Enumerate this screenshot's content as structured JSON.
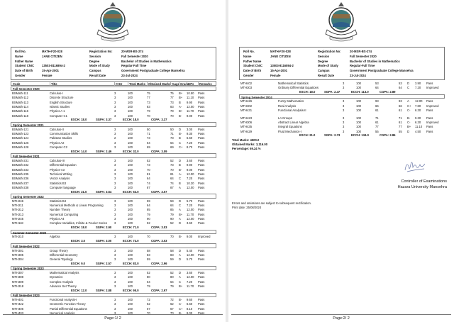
{
  "logo_text": "HAZARA UNIVERSITY",
  "student": {
    "left": [
      [
        "Roll No.",
        "MATH-F20-028"
      ],
      [
        "Name",
        "JANE CITIZEN"
      ],
      [
        "Father Name",
        ""
      ],
      [
        "Student CNIC",
        "13503-8116894-2"
      ],
      [
        "Date of Birth",
        "15-Apr-2001"
      ],
      [
        "Gender",
        "Female"
      ]
    ],
    "right": [
      [
        "Registration No:",
        "20-MSR-BS-274"
      ],
      [
        "Session",
        "Fall Semester 2020"
      ],
      [
        "Degree",
        "Bachelor of Studies in Mathematics"
      ],
      [
        "Mode of Study",
        "Regular-Full Time"
      ],
      [
        "Campus",
        "Government Postgraduate College Mansehra"
      ],
      [
        "Result Date",
        "23-Jul-2024"
      ]
    ]
  },
  "columns": [
    "Code",
    "Title",
    "CrHr",
    "Total Marks",
    "Obtained Marks",
    "%age",
    "Grade",
    "GPs",
    "Remarks"
  ],
  "page1": {
    "sections": [
      {
        "title": "Fall Semester 2020",
        "rows": [
          [
            "BSMath-111",
            "Calculus-I",
            "3",
            "100",
            "75",
            "75",
            "B+",
            "10.50",
            "Pass"
          ],
          [
            "BSMath-112",
            "Discrete Structure",
            "3",
            "100",
            "77",
            "77",
            "B+",
            "11.10",
            "Pass"
          ],
          [
            "BSMath-113",
            "English Structure",
            "3",
            "100",
            "73",
            "73",
            "B",
            "9.90",
            "Pass"
          ],
          [
            "BSMath-114",
            "Islamic Studies",
            "3",
            "100",
            "83",
            "83",
            "A-",
            "12.00",
            "Pass"
          ],
          [
            "BSMath-116",
            "Physics A 1",
            "3",
            "100",
            "79",
            "79",
            "B+",
            "11.70",
            "Pass"
          ],
          [
            "BSMath-118",
            "Computer C1",
            "3",
            "100",
            "70",
            "70",
            "B-",
            "9.00",
            "Pass"
          ]
        ],
        "summary": {
          "esch": "ESCH: 18.0",
          "sgpa": "SGPA: 3.37",
          "ecch": "ECCH: 18.0",
          "cgpa": "CGPA: 3.37"
        }
      },
      {
        "title": "Spring Semester 2021",
        "rows": [
          [
            "BSMath-121",
            "Calculus-II",
            "3",
            "100",
            "50",
            "50",
            "D",
            "3.00",
            "Pass"
          ],
          [
            "BSMath-123",
            "Communication Skills",
            "3",
            "100",
            "71",
            "71",
            "B-",
            "9.30",
            "Pass"
          ],
          [
            "BSMath-124",
            "Pakistan Studies",
            "2",
            "100",
            "73",
            "73",
            "B",
            "6.60",
            "Pass"
          ],
          [
            "BSMath-126",
            "Physics A2",
            "3",
            "100",
            "64",
            "64",
            "C",
            "7.20",
            "Pass"
          ],
          [
            "BSMath-128",
            "Computer C2",
            "3",
            "100",
            "69",
            "69",
            "C+",
            "8.70",
            "Pass"
          ]
        ],
        "summary": {
          "esch": "ESCH: 14.0",
          "sgpa": "SGPA: 2.49",
          "ecch": "ECCH: 32.0",
          "cgpa": "CGPA: 3.09"
        }
      },
      {
        "title": "Fall Semester 2021",
        "rows": [
          [
            "BSMath-231",
            "Calculus-III",
            "3",
            "100",
            "52",
            "52",
            "D",
            "3.60",
            "Pass"
          ],
          [
            "BSMath-232",
            "Differential Equation",
            "3",
            "100",
            "73",
            "73",
            "B",
            "9.90",
            "Pass"
          ],
          [
            "BSMath-233",
            "Physics-A3",
            "3",
            "100",
            "70",
            "70",
            "B-",
            "9.00",
            "Pass"
          ],
          [
            "BSMath-235",
            "Technical Writing",
            "3",
            "100",
            "81",
            "81",
            "A-",
            "12.00",
            "Pass"
          ],
          [
            "BSMath-236",
            "Vector Analysis",
            "3",
            "100",
            "64",
            "64",
            "C",
            "7.20",
            "Pass"
          ],
          [
            "BSMath-237",
            "Statistics B3",
            "3",
            "100",
            "74",
            "74",
            "B",
            "10.20",
            "Pass"
          ],
          [
            "BSMath-238",
            "Computer language",
            "3",
            "100",
            "87",
            "87",
            "A",
            "12.00",
            "Pass"
          ]
        ],
        "summary": {
          "esch": "ESCH: 21.0",
          "sgpa": "SGPA: 3.64",
          "ecch": "ECCH: 53.0",
          "cgpa": "CGPA: 3.07"
        }
      },
      {
        "title": "Spring Semester 2022",
        "rows": [
          [
            "MTH246",
            "Statistics B4",
            "3",
            "100",
            "59",
            "59",
            "D",
            "5.70",
            "Pass"
          ],
          [
            "MTH211",
            "Numerical Methods & Linear Programing",
            "3",
            "100",
            "64",
            "64",
            "C",
            "7.20",
            "Pass"
          ],
          [
            "MTH212",
            "Number Theory",
            "3",
            "100",
            "85",
            "85",
            "A",
            "12.00",
            "Pass"
          ],
          [
            "MTH213",
            "Numerical Computing",
            "3",
            "100",
            "79",
            "79",
            "B+",
            "11.70",
            "Pass"
          ],
          [
            "MTH245",
            "Physics A4",
            "3",
            "100",
            "90",
            "90",
            "A",
            "12.00",
            "Pass"
          ],
          [
            "MTH118",
            "Complex Variables, Infinite & Fourier Series",
            "3",
            "100",
            "52",
            "52",
            "D",
            "3.60",
            "Pass"
          ]
        ],
        "summary": {
          "esch": "ESCH: 18.0",
          "sgpa": "SGPA: 2.90",
          "ecch": "ECCH: 71.0",
          "cgpa": "CGPA: 3.03"
        }
      },
      {
        "title": "Summer Semester 2022",
        "rows": [
          [
            "MTH210",
            "Algebra",
            "3",
            "100",
            "70",
            "70",
            "B-",
            "9.00",
            "Improved"
          ]
        ],
        "summary": {
          "esch": "ESCH: 3.0",
          "sgpa": "SGPA: 3.00",
          "ecch": "ECCH: 74.0",
          "cgpa": "CGPA: 3.03"
        }
      },
      {
        "title": "Fall Semester 2022",
        "rows": [
          [
            "MTH301",
            "Group Theory",
            "3",
            "100",
            "58",
            "58",
            "D",
            "5.40",
            "Pass"
          ],
          [
            "MTH305",
            "Differential Geometry",
            "3",
            "100",
            "83",
            "83",
            "A",
            "12.00",
            "Pass"
          ],
          [
            "MTH304",
            "General Topology",
            "3",
            "100",
            "59",
            "59",
            "D",
            "5.70",
            "Pass"
          ]
        ],
        "summary": {
          "esch": "ESCH: 9.0",
          "sgpa": "SGPA: 2.57",
          "ecch": "ECCH: 83.0",
          "cgpa": "CGPA: 2.96"
        }
      },
      {
        "title": "Spring Semester 2023",
        "rows": [
          [
            "MTH307",
            "Mathematical Analysis",
            "3",
            "100",
            "52",
            "52",
            "D",
            "3.60",
            "Pass"
          ],
          [
            "MTH308",
            "Dynamics",
            "3",
            "100",
            "80",
            "80",
            "A",
            "12.00",
            "Pass"
          ],
          [
            "MTH309",
            "Complex Analysis",
            "3",
            "100",
            "64",
            "64",
            "C",
            "7.20",
            "Pass"
          ],
          [
            "MTH318",
            "Advance Set Theory",
            "3",
            "100",
            "79",
            "79",
            "B+",
            "11.70",
            "Pass"
          ]
        ],
        "summary": {
          "esch": "ESCH: 12.0",
          "sgpa": "SGPA: 2.88",
          "ecch": "ECCH: 95.0",
          "cgpa": "CGPA: 2.97"
        }
      },
      {
        "title": "Fall Semester 2023",
        "rows": [
          [
            "MTH401",
            "Functional Analysis-I",
            "3",
            "100",
            "72",
            "72",
            "B-",
            "9.60",
            "Pass"
          ],
          [
            "MTH422",
            "Geometric Function Theory",
            "3",
            "100",
            "62",
            "62",
            "C-",
            "6.60",
            "Pass"
          ],
          [
            "MTH406",
            "Partial Differential Equations",
            "3",
            "100",
            "67",
            "67",
            "C+",
            "8.10",
            "Pass"
          ],
          [
            "MTH403",
            "Numerical Analysis",
            "3",
            "100",
            "70",
            "70",
            "B-",
            "9.00",
            "Pass"
          ]
        ],
        "summary": null
      }
    ],
    "page_label": "Page:1/ 2"
  },
  "page2": {
    "sections": [
      {
        "title": "",
        "rows": [
          [
            "MTH402",
            "Mathematical Statistics",
            "3",
            "100",
            "53",
            "53",
            "D",
            "3.90",
            "Pass"
          ],
          [
            "MTH303",
            "Ordinary Differential Equations",
            "3",
            "100",
            "64",
            "64",
            "C",
            "7.20",
            "Improved"
          ]
        ],
        "summary": {
          "esch": "ESCH: 18.0",
          "sgpa": "SGPA: 2.47",
          "ecch": "ECCH: 113.0",
          "cgpa": "CGPA: 2.89"
        }
      },
      {
        "title": "Spring Semester 2024",
        "rows": [
          [
            "MTH426",
            "Fuzzy Mathematics",
            "3",
            "100",
            "93",
            "93",
            "A",
            "12.00",
            "Pass"
          ],
          [
            "MTH302",
            "Real Analysis",
            "3",
            "100",
            "66",
            "66",
            "C+",
            "7.80",
            "Improved"
          ],
          [
            "MTH431",
            "Functional Analysis-II",
            "3",
            "100",
            "61",
            "61",
            "C-",
            "6.30",
            "Pass"
          ],
          null,
          [
            "MTH423",
            "LA Groups",
            "3",
            "100",
            "71",
            "71",
            "B-",
            "9.30",
            "Pass"
          ],
          [
            "MTH306",
            "Abstract Linear Algebra",
            "3",
            "100",
            "61",
            "61",
            "C-",
            "6.30",
            "Improved"
          ],
          [
            "MTH435",
            "Integral Equations",
            "3",
            "100",
            "77",
            "77",
            "B+",
            "11.10",
            "Pass"
          ],
          [
            "MTH429",
            "Fluid Mechanics-I",
            "3",
            "100",
            "55",
            "55",
            "D",
            "4.50",
            "Pass"
          ]
        ],
        "summary": {
          "esch": "ESCH: 21.0",
          "sgpa": "SGPA: 2.73",
          "ecch": "ECCH: 134.0",
          "cgpa": "CGPA: 2.86"
        }
      }
    ],
    "totals": [
      "Total Marks: 4500.0",
      "Obtained Marks: 3,116.00",
      "Percentage: 69.24 %"
    ],
    "controller": "Controller of Examinations",
    "university": "Hazara University Mansehra",
    "note": "Errors and omissions are subject to subsequent rectification.",
    "print_date": "Print date: 25/08/2024",
    "page_label": "Page:2/ 2"
  }
}
